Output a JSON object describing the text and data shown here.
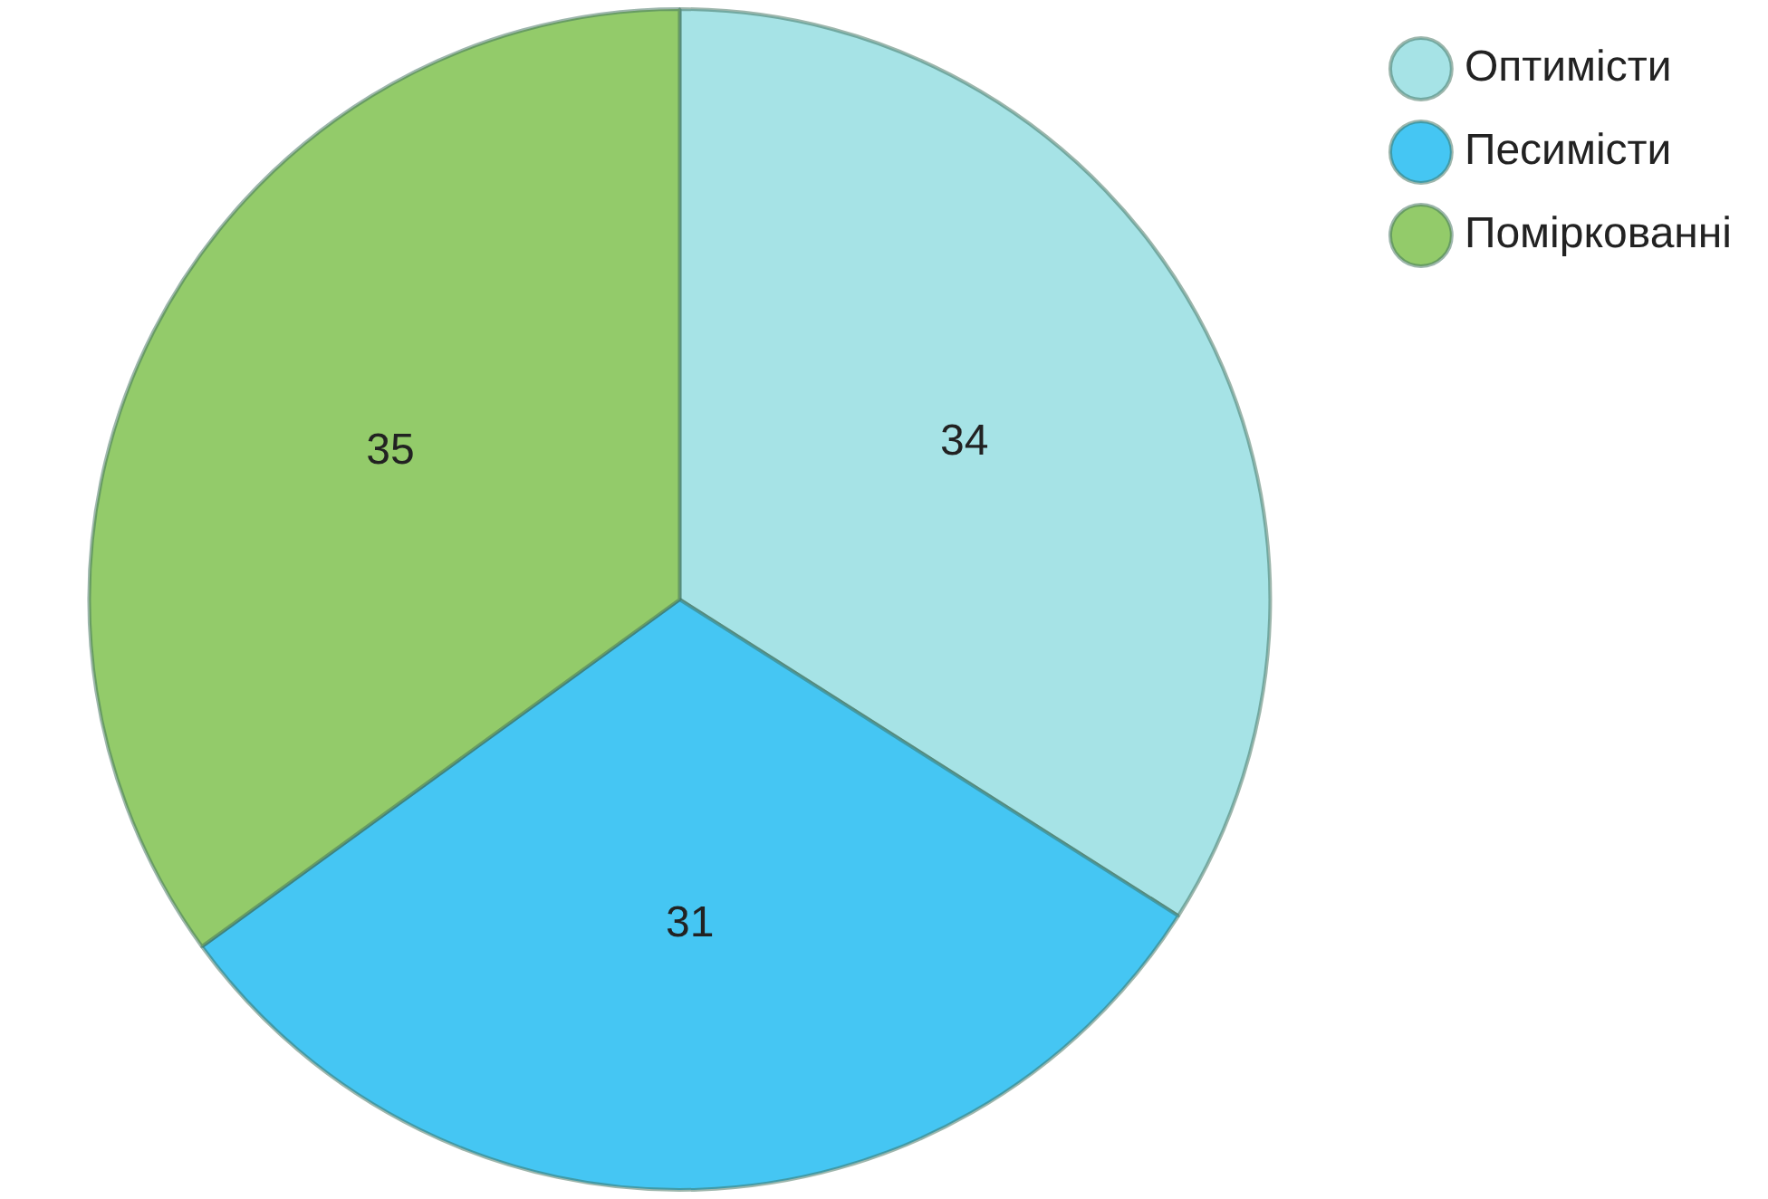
{
  "chart_data": {
    "type": "pie",
    "categories": [
      "Оптимісти",
      "Песимісти",
      "Поміркованні"
    ],
    "values": [
      34,
      31,
      35
    ],
    "colors": [
      "#a6e3e6",
      "#45c6f3",
      "#93cb6a"
    ],
    "data_labels": true,
    "legend": "top right"
  }
}
